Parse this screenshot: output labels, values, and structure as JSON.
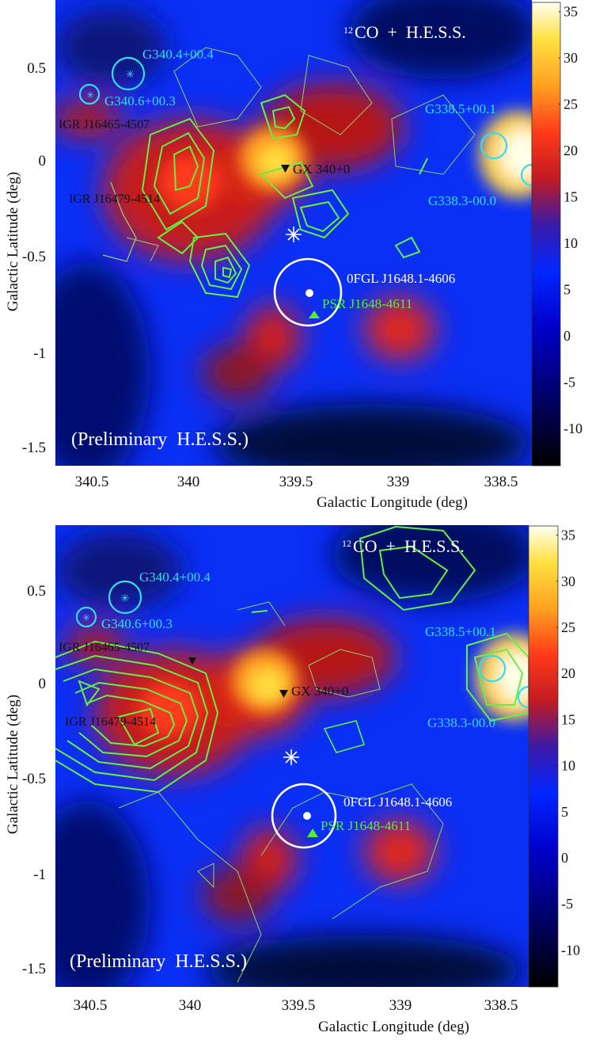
{
  "colorbar": {
    "ticks": [
      35,
      30,
      25,
      20,
      15,
      10,
      5,
      0,
      -5,
      -10
    ],
    "range": [
      -14,
      36
    ],
    "colors": [
      "#000000",
      "#0000cc",
      "#0022ff",
      "#d91a12",
      "#ff4a1c",
      "#ffa51e",
      "#ffe23a",
      "#ffffff"
    ]
  },
  "chart_data": [
    {
      "type": "heatmap",
      "title_prefix": "12",
      "title": "CO  +  H.E.S.S.",
      "watermark": "(Preliminary  H.E.S.S.)",
      "xlabel": "Galactic Longitude (deg)",
      "ylabel": "Galactic Latitude (deg)",
      "xlim": [
        340.8,
        338.3
      ],
      "ylim": [
        -1.6,
        0.8
      ],
      "x_ticks": [
        "340.5",
        "340",
        "339.5",
        "339",
        "338.5"
      ],
      "y_ticks": [
        "0.5",
        "0",
        "-0.5",
        "-1",
        "-1.5"
      ],
      "contour_color": "#66ee44",
      "sources": [
        {
          "label": "G340.4+00.4",
          "l": 340.42,
          "b": 0.45,
          "color": "#33ddee"
        },
        {
          "label": "G340.6+00.3",
          "l": 340.66,
          "b": 0.34,
          "color": "#33ddee"
        },
        {
          "label": "G338.5+00.1",
          "l": 338.53,
          "b": 0.08,
          "color": "#33ddee"
        },
        {
          "label": "G338.3-00.0",
          "l": 338.32,
          "b": -0.08,
          "color": "#33ddee"
        }
      ],
      "markers": [
        {
          "label": "IGR J16465-4507",
          "l": 340.1,
          "b": 0.12,
          "color": "#111111"
        },
        {
          "label": "IGR J16479-4514",
          "l": 340.2,
          "b": -0.12,
          "color": "#111111"
        },
        {
          "label": "GX 340+0",
          "l": 339.6,
          "b": -0.04,
          "color": "#111111"
        },
        {
          "label": "0FGL J1648.1-4606",
          "l": 339.45,
          "b": -0.71,
          "color": "#ffffff"
        },
        {
          "label": "PSR J1648-4611",
          "l": 339.44,
          "b": -0.79,
          "color": "#55ee33"
        }
      ],
      "star": {
        "l": 339.56,
        "b": -0.38
      }
    },
    {
      "type": "heatmap",
      "title_prefix": "12",
      "title": "CO  +  H.E.S.S.",
      "watermark": "(Preliminary  H.E.S.S.)",
      "xlabel": "Galactic Longitude (deg)",
      "ylabel": "Galactic Latitude (deg)",
      "xlim": [
        340.8,
        338.3
      ],
      "ylim": [
        -1.6,
        0.8
      ],
      "x_ticks": [
        "340.5",
        "340",
        "339.5",
        "339",
        "338.5"
      ],
      "y_ticks": [
        "0.5",
        "0",
        "-0.5",
        "-1",
        "-1.5"
      ],
      "contour_color": "#66ee44",
      "sources": [
        {
          "label": "G340.4+00.4",
          "l": 340.42,
          "b": 0.45,
          "color": "#33ddee"
        },
        {
          "label": "G340.6+00.3",
          "l": 340.66,
          "b": 0.34,
          "color": "#33ddee"
        },
        {
          "label": "G338.5+00.1",
          "l": 338.53,
          "b": 0.08,
          "color": "#33ddee"
        },
        {
          "label": "G338.3-00.0",
          "l": 338.32,
          "b": -0.08,
          "color": "#33ddee"
        }
      ],
      "markers": [
        {
          "label": "IGR J16465-4507",
          "l": 340.1,
          "b": 0.12,
          "color": "#111111"
        },
        {
          "label": "IGR J16479-4514",
          "l": 340.2,
          "b": -0.12,
          "color": "#111111"
        },
        {
          "label": "GX 340+0",
          "l": 339.6,
          "b": -0.04,
          "color": "#111111"
        },
        {
          "label": "0FGL J1648.1-4606",
          "l": 339.45,
          "b": -0.71,
          "color": "#ffffff"
        },
        {
          "label": "PSR J1648-4611",
          "l": 339.44,
          "b": -0.79,
          "color": "#55ee33"
        }
      ],
      "star": {
        "l": 339.56,
        "b": -0.38
      }
    }
  ]
}
